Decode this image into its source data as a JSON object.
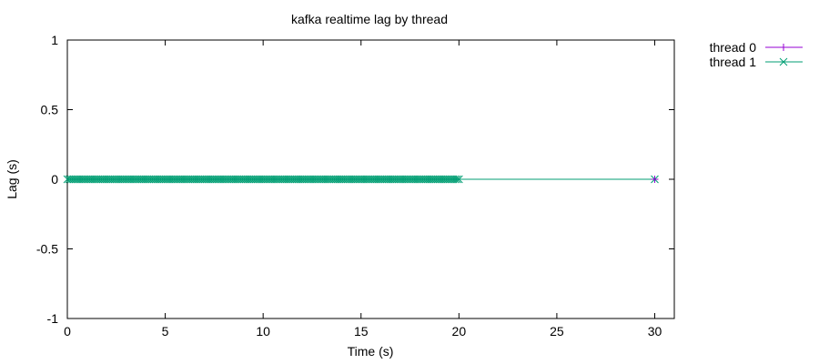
{
  "chart_data": {
    "type": "line",
    "title": "kafka realtime lag by thread",
    "xlabel": "Time (s)",
    "ylabel": "Lag (s)",
    "xlim": [
      0,
      31
    ],
    "ylim": [
      -1,
      1
    ],
    "xticks": [
      0,
      5,
      10,
      15,
      20,
      25,
      30
    ],
    "yticks": [
      -1,
      -0.5,
      0,
      0.5,
      1
    ],
    "xtick_labels": [
      "0",
      "5",
      "10",
      "15",
      "20",
      "25",
      "30"
    ],
    "ytick_labels": [
      "-1",
      "-0.5",
      "0",
      "0.5",
      "1"
    ],
    "grid": false,
    "legend_position": "top-right-outside",
    "series": [
      {
        "name": "thread 0",
        "color": "#9400d3",
        "marker": "plus",
        "x": [
          30
        ],
        "y": [
          0
        ]
      },
      {
        "name": "thread 1",
        "color": "#009e73",
        "marker": "cross",
        "x_start": 0,
        "x_end": 20,
        "x_step": 0.1,
        "extra_x": [
          30
        ],
        "y_value": 0
      }
    ]
  }
}
